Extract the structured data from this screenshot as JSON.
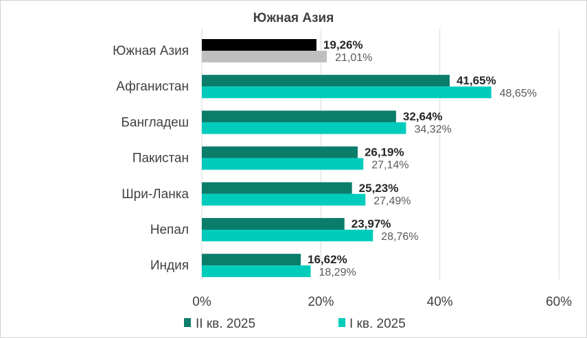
{
  "chart_data": {
    "type": "bar",
    "orientation": "horizontal",
    "title": "Южная Азия",
    "categories": [
      "Южная Азия",
      "Афганистан",
      "Бангладеш",
      "Пакистан",
      "Шри-Ланка",
      "Непал",
      "Индия"
    ],
    "series": [
      {
        "name": "II кв. 2025",
        "values": [
          19.26,
          41.65,
          32.64,
          26.19,
          25.23,
          23.97,
          16.62
        ],
        "labels": [
          "19,26%",
          "41,65%",
          "32,64%",
          "26,19%",
          "25,23%",
          "23,97%",
          "16,62%"
        ],
        "color": "#0b7d6b",
        "highlight_color": "#000000"
      },
      {
        "name": "I кв. 2025",
        "values": [
          21.01,
          48.65,
          34.32,
          27.14,
          27.49,
          28.76,
          18.29
        ],
        "labels": [
          "21,01%",
          "48,65%",
          "34,32%",
          "27,14%",
          "27,49%",
          "28,76%",
          "18,29%"
        ],
        "color": "#00ccbc",
        "highlight_color": "#bfbfbf"
      }
    ],
    "xlim": [
      0,
      60
    ],
    "x_ticks": [
      "0%",
      "20%",
      "40%",
      "60%"
    ],
    "grid": true,
    "legend_position": "bottom"
  }
}
